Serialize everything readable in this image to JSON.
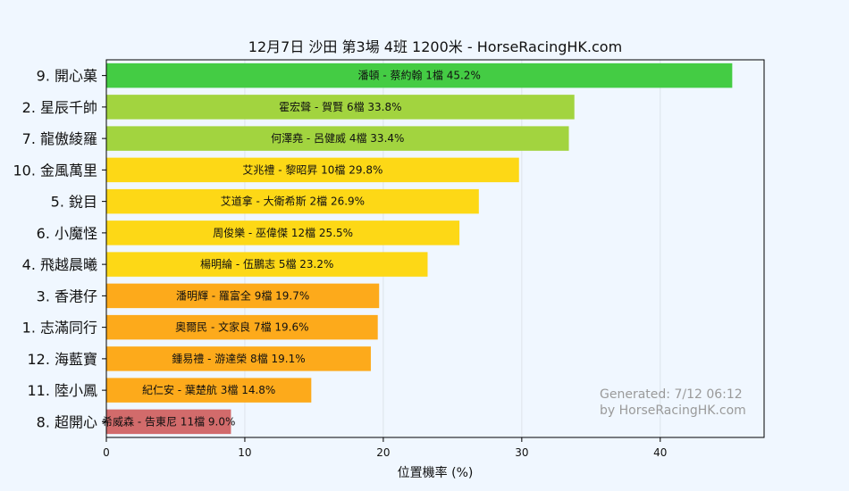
{
  "chart_data": {
    "type": "bar",
    "orientation": "horizontal",
    "title": "12月7日  沙田  第3場  4班  1200米 - HorseRacingHK.com",
    "xlabel": "位置機率 (%)",
    "ylabel": "",
    "xlim": [
      0,
      47.5
    ],
    "xticks": [
      0,
      10,
      20,
      30,
      40
    ],
    "grid": "vertical",
    "categories": [
      "9. 開心菓",
      "2. 星辰千帥",
      "7. 龍傲綾羅",
      "10. 金風萬里",
      "5. 銳目",
      "6. 小魔怪",
      "4. 飛越晨曦",
      "3. 香港仔",
      "1. 志滿同行",
      "12. 海藍寶",
      "11. 陸小鳳",
      "8. 超開心"
    ],
    "values": [
      45.2,
      33.8,
      33.4,
      29.8,
      26.9,
      25.5,
      23.2,
      19.7,
      19.6,
      19.1,
      14.8,
      9.0
    ],
    "bar_labels": [
      "潘頓 - 蔡約翰 1檔  45.2%",
      "霍宏聲 - 賀賢 6檔  33.8%",
      "何澤堯 - 呂健威 4檔  33.4%",
      "艾兆禮 - 黎昭昇 10檔  29.8%",
      "艾道拿 - 大衛希斯 2檔  26.9%",
      "周俊樂 - 巫偉傑 12檔  25.5%",
      "楊明綸 - 伍鵬志 5檔  23.2%",
      "潘明輝 - 羅富全 9檔  19.7%",
      "奧爾民 - 文家良 7檔  19.6%",
      "鍾易禮 - 游達榮 8檔  19.1%",
      "紀仁安 - 葉楚航 3檔  14.8%",
      "希威森 - 告東尼 11檔  9.0%"
    ],
    "colors": [
      "#44cc44",
      "#a2d43f",
      "#a2d43f",
      "#fdd816",
      "#fdd816",
      "#fdd816",
      "#fdd816",
      "#fdaa1b",
      "#fdaa1b",
      "#fdaa1b",
      "#fdaa1b",
      "#d26b6b"
    ],
    "watermark": [
      "Generated: 7/12 06:12",
      "by HorseRacingHK.com"
    ]
  }
}
